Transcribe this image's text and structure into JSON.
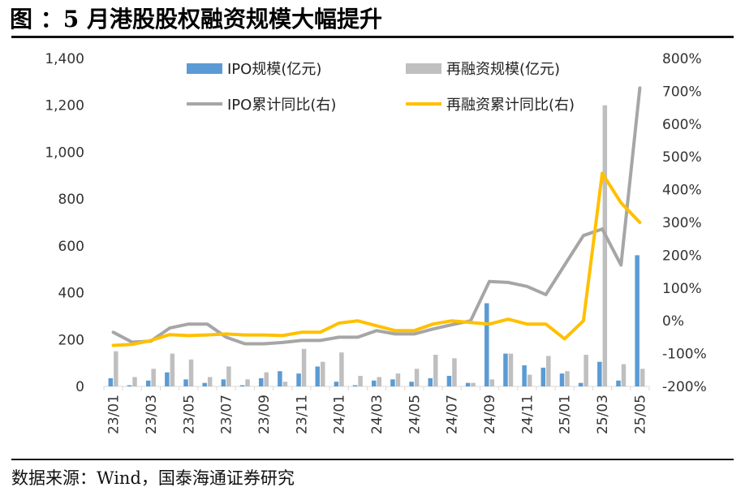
{
  "title": "图 ：5 月港股股权融资规模大幅提升",
  "source": "数据来源：Wind，国泰海通证券研究",
  "chart_data": {
    "type": "bar+line",
    "title": "",
    "categories": [
      "23/01",
      "23/02",
      "23/03",
      "23/04",
      "23/05",
      "23/06",
      "23/07",
      "23/08",
      "23/09",
      "23/10",
      "23/11",
      "23/12",
      "24/01",
      "24/02",
      "24/03",
      "24/04",
      "24/05",
      "24/06",
      "24/07",
      "24/08",
      "24/09",
      "24/10",
      "24/11",
      "24/12",
      "25/01",
      "25/02",
      "25/03",
      "25/04",
      "25/05"
    ],
    "x_tick_labels": [
      "23/01",
      "23/03",
      "23/05",
      "23/07",
      "23/09",
      "23/11",
      "24/01",
      "24/03",
      "24/05",
      "24/07",
      "24/09",
      "24/11",
      "25/01",
      "25/03",
      "25/05"
    ],
    "y_left": {
      "min": 0,
      "max": 1400,
      "step": 200,
      "tick_labels": [
        "0",
        "200",
        "400",
        "600",
        "800",
        "1,000",
        "1,200",
        "1,400"
      ]
    },
    "y_right": {
      "min": -200,
      "max": 800,
      "step": 100,
      "tick_labels": [
        "-200%",
        "-100%",
        "0%",
        "100%",
        "200%",
        "300%",
        "400%",
        "500%",
        "600%",
        "700%",
        "800%"
      ]
    },
    "legend_position": "top",
    "series": [
      {
        "name": "IPO规模(亿元)",
        "kind": "bar",
        "axis": "left",
        "color": "#5b9bd5",
        "values": [
          35,
          5,
          25,
          60,
          30,
          15,
          30,
          5,
          35,
          65,
          55,
          85,
          20,
          5,
          25,
          30,
          20,
          35,
          45,
          15,
          355,
          140,
          90,
          80,
          55,
          15,
          105,
          25,
          560
        ]
      },
      {
        "name": "再融资规模(亿元)",
        "kind": "bar",
        "axis": "left",
        "color": "#bfbfbf",
        "values": [
          150,
          40,
          75,
          140,
          115,
          40,
          85,
          30,
          60,
          20,
          160,
          105,
          145,
          45,
          40,
          55,
          75,
          135,
          120,
          15,
          30,
          140,
          50,
          130,
          65,
          135,
          1200,
          95,
          75
        ]
      },
      {
        "name": "IPO累计同比(右)",
        "kind": "line",
        "axis": "right",
        "color": "#a6a6a6",
        "values": [
          -35,
          -65,
          -62,
          -22,
          -10,
          -10,
          -50,
          -70,
          -70,
          -66,
          -60,
          -60,
          -50,
          -50,
          -30,
          -40,
          -40,
          -25,
          -12,
          0,
          120,
          117,
          105,
          80,
          170,
          260,
          280,
          170,
          710
        ]
      },
      {
        "name": "再融资累计同比(右)",
        "kind": "line",
        "axis": "right",
        "color": "#ffc000",
        "values": [
          -75,
          -72,
          -60,
          -42,
          -45,
          -43,
          -40,
          -43,
          -43,
          -45,
          -35,
          -35,
          -7,
          0,
          -15,
          -30,
          -30,
          -10,
          0,
          -5,
          -10,
          5,
          -10,
          -10,
          -55,
          0,
          450,
          360,
          300
        ]
      }
    ]
  }
}
